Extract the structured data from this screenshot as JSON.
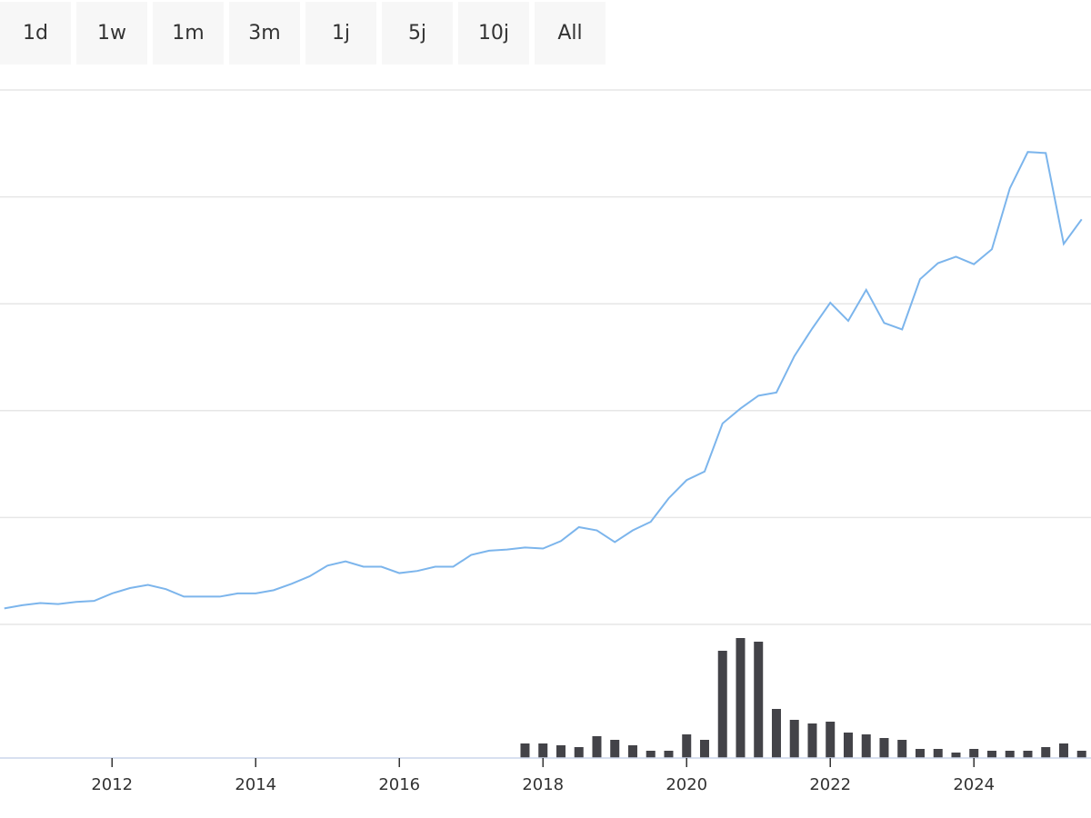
{
  "buttons": [
    "1d",
    "1w",
    "1m",
    "3m",
    "1j",
    "5j",
    "10j",
    "All"
  ],
  "chart_data": [
    {
      "type": "line",
      "x": [
        2010.5,
        2010.75,
        2011,
        2011.25,
        2011.5,
        2011.75,
        2012,
        2012.25,
        2012.5,
        2012.75,
        2013,
        2013.25,
        2013.5,
        2013.75,
        2014,
        2014.25,
        2014.5,
        2014.75,
        2015,
        2015.25,
        2015.5,
        2015.75,
        2016,
        2016.25,
        2016.5,
        2016.75,
        2017,
        2017.25,
        2017.5,
        2017.75,
        2018,
        2018.25,
        2018.5,
        2018.75,
        2019,
        2019.25,
        2019.5,
        2019.75,
        2020,
        2020.25,
        2020.5,
        2020.75,
        2021,
        2021.25,
        2021.5,
        2021.75,
        2022,
        2022.25,
        2022.5,
        2022.75,
        2023,
        2023.25,
        2023.5,
        2023.75,
        2024,
        2024.25,
        2024.5,
        2024.75,
        2025,
        2025.25,
        2025.5
      ],
      "series": [
        {
          "color": "#7cb5ec",
          "values": [
            0.15,
            0.18,
            0.2,
            0.19,
            0.21,
            0.22,
            0.29,
            0.34,
            0.37,
            0.33,
            0.26,
            0.26,
            0.26,
            0.29,
            0.29,
            0.32,
            0.38,
            0.45,
            0.55,
            0.59,
            0.54,
            0.54,
            0.48,
            0.5,
            0.54,
            0.54,
            0.65,
            0.69,
            0.7,
            0.72,
            0.71,
            0.78,
            0.91,
            0.88,
            0.77,
            0.88,
            0.96,
            1.18,
            1.35,
            1.43,
            1.88,
            2.02,
            2.14,
            2.17,
            2.51,
            2.77,
            3.01,
            2.84,
            3.13,
            2.82,
            2.76,
            3.23,
            3.38,
            3.44,
            3.37,
            3.51,
            4.08,
            4.42,
            4.41,
            3.56,
            3.79
          ]
        }
      ],
      "xlim": [
        2010.44,
        2025.63
      ],
      "ylim": [
        0,
        5
      ],
      "yticks": [
        0,
        1,
        2,
        3,
        4,
        5
      ],
      "grid": true,
      "show_ytick_labels": false
    },
    {
      "type": "bar",
      "x": [
        2017.75,
        2018,
        2018.25,
        2018.5,
        2018.75,
        2019,
        2019.25,
        2019.5,
        2019.75,
        2020,
        2020.25,
        2020.5,
        2020.75,
        2021,
        2021.25,
        2021.5,
        2021.75,
        2022,
        2022.25,
        2022.5,
        2022.75,
        2023,
        2023.25,
        2023.5,
        2023.75,
        2024,
        2024.25,
        2024.5,
        2024.75,
        2025,
        2025.25,
        2025.5
      ],
      "series": [
        {
          "color": "#434348",
          "values": [
            16,
            16,
            14,
            12,
            24,
            20,
            14,
            8,
            8,
            26,
            20,
            118,
            132,
            128,
            54,
            42,
            38,
            40,
            28,
            26,
            22,
            20,
            10,
            10,
            6,
            10,
            8,
            8,
            8,
            12,
            16,
            8
          ]
        }
      ],
      "xlim": [
        2010.44,
        2025.63
      ],
      "xticks": [
        2012,
        2014,
        2016,
        2018,
        2020,
        2022,
        2024
      ],
      "ylim": [
        0,
        150
      ]
    }
  ]
}
